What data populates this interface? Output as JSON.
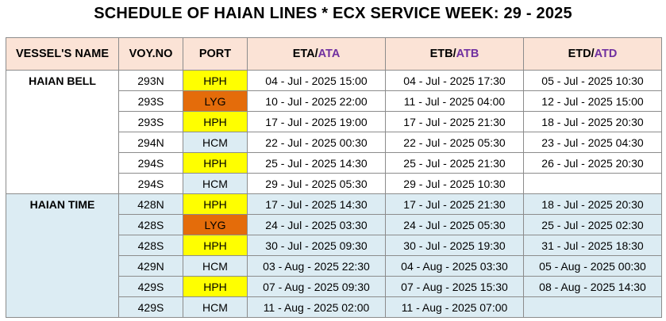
{
  "title": "SCHEDULE OF HAIAN LINES * ECX SERVICE WEEK: 29 - 2025",
  "headers": {
    "vessel": "VESSEL'S NAME",
    "voy": "VOY.NO",
    "port": "PORT",
    "eta_a": "ETA/",
    "eta_b": "ATA",
    "etb_a": "ETB/",
    "etb_b": "ATB",
    "etd_a": "ETD/",
    "etd_b": "ATD"
  },
  "colors": {
    "header_bg": "#fbe3d6",
    "accent_purple": "#7030a0",
    "port_hph": "#ffff00",
    "port_lyg": "#e46c0a",
    "port_hcm": "#dcecf3",
    "block2_bg": "#dcecf3"
  },
  "vessels": [
    {
      "name": "HAIAN BELL",
      "rows": [
        {
          "voy": "293N",
          "port": "HPH",
          "eta": "04 - Jul - 2025 15:00",
          "etb": "04 - Jul - 2025 17:30",
          "etd": "05 - Jul - 2025 10:30"
        },
        {
          "voy": "293S",
          "port": "LYG",
          "eta": "10 - Jul - 2025 22:00",
          "etb": "11 - Jul - 2025 04:00",
          "etd": "12 - Jul - 2025 15:00"
        },
        {
          "voy": "293S",
          "port": "HPH",
          "eta": "17 - Jul - 2025 19:00",
          "etb": "17 - Jul - 2025 21:30",
          "etd": "18 - Jul - 2025 20:30"
        },
        {
          "voy": "294N",
          "port": "HCM",
          "eta": "22 - Jul - 2025 00:30",
          "etb": "22 - Jul - 2025 05:30",
          "etd": "23 - Jul - 2025 04:30"
        },
        {
          "voy": "294S",
          "port": "HPH",
          "eta": "25 - Jul - 2025 14:30",
          "etb": "25 - Jul - 2025 21:30",
          "etd": "26 - Jul - 2025 20:30"
        },
        {
          "voy": "294S",
          "port": "HCM",
          "eta": "29 - Jul - 2025 05:30",
          "etb": "29 - Jul - 2025 10:30",
          "etd": ""
        }
      ]
    },
    {
      "name": "HAIAN TIME",
      "rows": [
        {
          "voy": "428N",
          "port": "HPH",
          "eta": "17 - Jul - 2025 14:30",
          "etb": "17 - Jul - 2025 21:30",
          "etd": "18 - Jul - 2025 20:30"
        },
        {
          "voy": "428S",
          "port": "LYG",
          "eta": "24 - Jul - 2025 03:30",
          "etb": "24 - Jul - 2025 05:30",
          "etd": "25 - Jul - 2025 02:30"
        },
        {
          "voy": "428S",
          "port": "HPH",
          "eta": "30 - Jul - 2025 09:30",
          "etb": "30 - Jul - 2025 19:30",
          "etd": "31 - Jul - 2025 18:30"
        },
        {
          "voy": "429N",
          "port": "HCM",
          "eta": "03 - Aug - 2025 22:30",
          "etb": "04 - Aug - 2025 03:30",
          "etd": "05 - Aug - 2025 00:30"
        },
        {
          "voy": "429S",
          "port": "HPH",
          "eta": "07 - Aug - 2025 09:30",
          "etb": "07 - Aug - 2025 15:30",
          "etd": "08 - Aug - 2025 14:30"
        },
        {
          "voy": "429S",
          "port": "HCM",
          "eta": "11 - Aug - 2025 02:00",
          "etb": "11 - Aug - 2025 07:00",
          "etd": ""
        }
      ]
    }
  ]
}
